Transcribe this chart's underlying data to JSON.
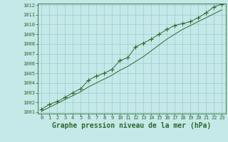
{
  "title": "Graphe pression niveau de la mer (hPa)",
  "x_values": [
    0,
    1,
    2,
    3,
    4,
    5,
    6,
    7,
    8,
    9,
    10,
    11,
    12,
    13,
    14,
    15,
    16,
    17,
    18,
    19,
    20,
    21,
    22,
    23
  ],
  "y_main": [
    1001.3,
    1001.8,
    1002.1,
    1002.5,
    1003.0,
    1003.4,
    1004.3,
    1004.7,
    1005.0,
    1005.4,
    1006.3,
    1006.6,
    1007.7,
    1008.1,
    1008.5,
    1009.0,
    1009.5,
    1009.9,
    1010.1,
    1010.3,
    1010.7,
    1011.2,
    1011.8,
    1012.1
  ],
  "y_smooth": [
    1001.1,
    1001.5,
    1001.9,
    1002.3,
    1002.7,
    1003.1,
    1003.6,
    1004.0,
    1004.4,
    1004.8,
    1005.3,
    1005.7,
    1006.2,
    1006.7,
    1007.3,
    1007.9,
    1008.5,
    1009.0,
    1009.5,
    1009.9,
    1010.3,
    1010.7,
    1011.1,
    1011.5
  ],
  "ylim": [
    1001,
    1012
  ],
  "xlim": [
    -0.5,
    23.5
  ],
  "yticks": [
    1001,
    1002,
    1003,
    1004,
    1005,
    1006,
    1007,
    1008,
    1009,
    1010,
    1011,
    1012
  ],
  "xticks": [
    0,
    1,
    2,
    3,
    4,
    5,
    6,
    7,
    8,
    9,
    10,
    11,
    12,
    13,
    14,
    15,
    16,
    17,
    18,
    19,
    20,
    21,
    22,
    23
  ],
  "line_color": "#2d6a2d",
  "bg_color": "#c5e8e8",
  "grid_color": "#9ecece",
  "marker": "+",
  "marker_size": 4,
  "title_fontsize": 7,
  "tick_fontsize": 5
}
